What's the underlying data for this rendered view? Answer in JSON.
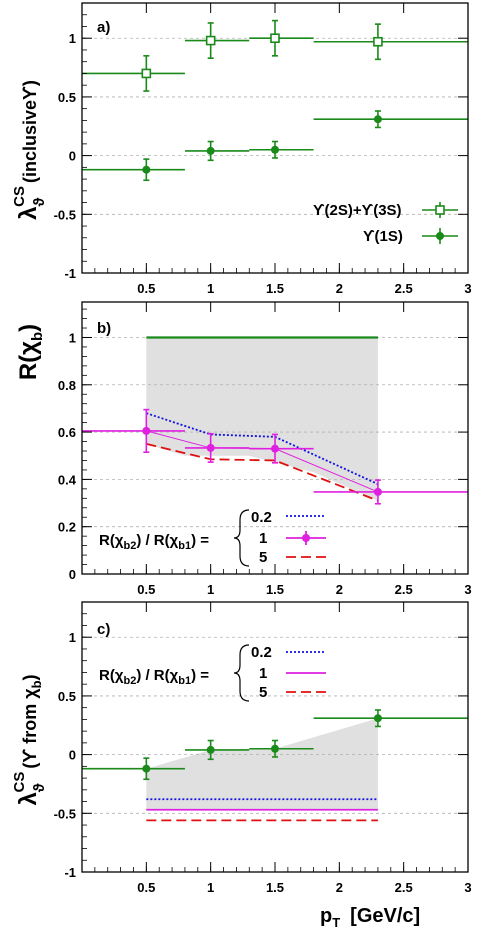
{
  "colors": {
    "green": "#1a8a1a",
    "magenta": "#e020e0",
    "blue": "#1010e0",
    "red": "#e01010",
    "band": "#e0e0e0",
    "grid": "#b0b0b0"
  },
  "xlabel": "p",
  "xlabel_sub": "T",
  "xlabel_unit": "[GeV/c]",
  "xticks": [
    "0.5",
    "1",
    "1.5",
    "2",
    "2.5",
    "3"
  ],
  "xtick_values": [
    0.5,
    1,
    1.5,
    2,
    2.5,
    3
  ],
  "chart_data": [
    {
      "panel_label": "a)",
      "type": "scatter",
      "ylabel": "λϑCS (inclusiveϒ)",
      "ylim": [
        -1,
        1.3
      ],
      "xlim": [
        0,
        3
      ],
      "yticks": [
        "-1",
        "-0.5",
        "0",
        "0.5",
        "1"
      ],
      "ytick_values": [
        -1,
        -0.5,
        0,
        0.5,
        1
      ],
      "series": [
        {
          "name": "ϒ(2S)+ϒ(3S)",
          "marker": "open-square",
          "color": "green",
          "x": [
            0.5,
            1.0,
            1.5,
            2.3
          ],
          "xerr": [
            [
              0.0,
              0.8
            ],
            [
              0.8,
              1.3
            ],
            [
              1.3,
              1.8
            ],
            [
              1.8,
              3.0
            ]
          ],
          "y": [
            0.7,
            0.98,
            1.0,
            0.97
          ],
          "yerr": [
            0.15,
            0.15,
            0.15,
            0.15
          ]
        },
        {
          "name": "ϒ(1S)",
          "marker": "filled-circle",
          "color": "green",
          "x": [
            0.5,
            1.0,
            1.5,
            2.3
          ],
          "xerr": [
            [
              0.0,
              0.8
            ],
            [
              0.8,
              1.3
            ],
            [
              1.3,
              1.8
            ],
            [
              1.8,
              3.0
            ]
          ],
          "y": [
            -0.12,
            0.04,
            0.05,
            0.31
          ],
          "yerr": [
            0.09,
            0.08,
            0.07,
            0.07
          ]
        }
      ]
    },
    {
      "panel_label": "b)",
      "type": "line",
      "ylabel": "R(χb)",
      "ylim": [
        0,
        1.15
      ],
      "xlim": [
        0,
        3
      ],
      "yticks": [
        "0",
        "0.2",
        "0.4",
        "0.6",
        "0.8",
        "1"
      ],
      "ytick_values": [
        0,
        0.2,
        0.4,
        0.6,
        0.8,
        1
      ],
      "legend_title": "R(χb2) / R(χb1) =",
      "upper_line": {
        "x": [
          0.5,
          2.3
        ],
        "y": [
          1.0,
          1.0
        ]
      },
      "band": {
        "x": [
          0.5,
          0.8,
          1.3,
          1.8,
          2.3
        ],
        "upper": [
          1.0,
          1.0,
          1.0,
          1.0,
          1.0
        ],
        "lower": [
          0.55,
          0.5,
          0.5,
          0.43,
          0.31
        ]
      },
      "series": [
        {
          "name": "0.2",
          "style": "dotted",
          "color": "blue",
          "x": [
            0.5,
            1.0,
            1.5,
            2.3
          ],
          "y": [
            0.68,
            0.59,
            0.58,
            0.38
          ]
        },
        {
          "name": "1",
          "style": "solid-points",
          "color": "magenta",
          "x": [
            0.5,
            1.0,
            1.5,
            2.3
          ],
          "xerr": [
            [
              0.0,
              0.8
            ],
            [
              0.8,
              1.3
            ],
            [
              1.3,
              1.8
            ],
            [
              1.8,
              3.0
            ]
          ],
          "y": [
            0.605,
            0.533,
            0.53,
            0.347
          ],
          "yerr": [
            0.09,
            0.06,
            0.06,
            0.05
          ]
        },
        {
          "name": "5",
          "style": "dashed",
          "color": "red",
          "x": [
            0.5,
            1.0,
            1.5,
            2.3
          ],
          "y": [
            0.55,
            0.485,
            0.48,
            0.31
          ]
        }
      ]
    },
    {
      "panel_label": "c)",
      "type": "scatter",
      "ylabel": "λϑCS (ϒ from χb)",
      "ylim": [
        -1,
        1.3
      ],
      "xlim": [
        0,
        3
      ],
      "yticks": [
        "-1",
        "-0.5",
        "0",
        "0.5",
        "1"
      ],
      "ytick_values": [
        -1,
        -0.5,
        0,
        0.5,
        1
      ],
      "legend_title": "R(χb2) / R(χb1) =",
      "band": {
        "x": [
          0.5,
          1.0,
          1.5,
          2.3
        ],
        "upper": [
          -0.12,
          0.04,
          0.05,
          0.31
        ],
        "lower": [
          -0.47,
          -0.47,
          -0.47,
          -0.47
        ]
      },
      "series": [
        {
          "name": "ϒ(1S)",
          "marker": "filled-circle",
          "color": "green",
          "x": [
            0.5,
            1.0,
            1.5,
            2.3
          ],
          "xerr": [
            [
              0.0,
              0.8
            ],
            [
              0.8,
              1.3
            ],
            [
              1.3,
              1.8
            ],
            [
              1.8,
              3.0
            ]
          ],
          "y": [
            -0.12,
            0.04,
            0.05,
            0.31
          ],
          "yerr": [
            0.09,
            0.08,
            0.07,
            0.07
          ]
        },
        {
          "name": "0.2",
          "style": "dotted",
          "color": "blue",
          "x": [
            0.5,
            2.3
          ],
          "y": [
            -0.38,
            -0.38
          ]
        },
        {
          "name": "1",
          "style": "solid",
          "color": "magenta",
          "x": [
            0.5,
            2.3
          ],
          "y": [
            -0.47,
            -0.47
          ]
        },
        {
          "name": "5",
          "style": "dashed",
          "color": "red",
          "x": [
            0.5,
            2.3
          ],
          "y": [
            -0.56,
            -0.56
          ]
        }
      ]
    }
  ]
}
